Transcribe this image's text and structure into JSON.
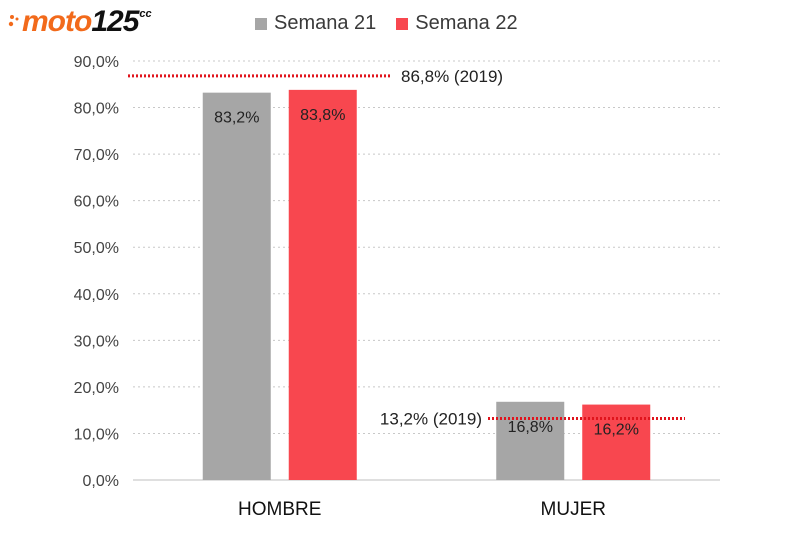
{
  "logo": {
    "brand": "moto",
    "number": "125",
    "suffix": "cc"
  },
  "colors": {
    "semana21": "#a6a6a6",
    "semana22": "#f8474f",
    "reference": "#e0141c",
    "logo_orange": "#f26a1b"
  },
  "chart_data": {
    "type": "bar",
    "categories": [
      "HOMBRE",
      "MUJER"
    ],
    "series": [
      {
        "name": "Semana 21",
        "values": [
          83.2,
          16.8
        ],
        "labels": [
          "83,2%",
          "16,8%"
        ]
      },
      {
        "name": "Semana 22",
        "values": [
          83.8,
          16.2
        ],
        "labels": [
          "83,8%",
          "16,2%"
        ]
      }
    ],
    "reference_lines": [
      {
        "category": "HOMBRE",
        "value": 86.8,
        "label": "86,8% (2019)"
      },
      {
        "category": "MUJER",
        "value": 13.2,
        "label": "13,2% (2019)"
      }
    ],
    "ylim": [
      0,
      90
    ],
    "yticks": [
      0,
      10,
      20,
      30,
      40,
      50,
      60,
      70,
      80,
      90
    ],
    "ytick_labels": [
      "0,0%",
      "10,0%",
      "20,0%",
      "30,0%",
      "40,0%",
      "50,0%",
      "60,0%",
      "70,0%",
      "80,0%",
      "90,0%"
    ],
    "grid": true,
    "legend_position": "top"
  }
}
